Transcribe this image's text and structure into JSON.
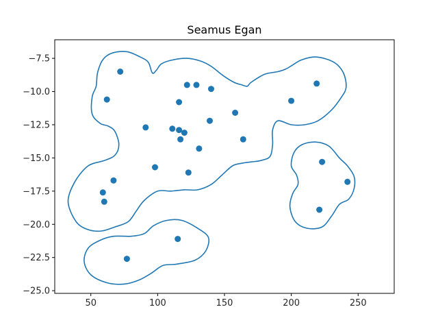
{
  "chart_data": {
    "type": "scatter",
    "title": "Seamus Egan",
    "xlabel": "",
    "ylabel": "",
    "xlim": [
      23,
      277
    ],
    "ylim": [
      -25.2,
      -6.1
    ],
    "xticks": [
      50,
      100,
      150,
      200,
      250
    ],
    "yticks": [
      -7.5,
      -10.0,
      -12.5,
      -15.0,
      -17.5,
      -20.0,
      -22.5,
      -25.0
    ],
    "xtick_labels": [
      "50",
      "100",
      "150",
      "200",
      "250"
    ],
    "ytick_labels": [
      "−7.5",
      "−10.0",
      "−12.5",
      "−15.0",
      "−17.5",
      "−20.0",
      "−22.5",
      "−25.0"
    ],
    "grid": false,
    "colors": {
      "points": "#1f77b4",
      "contour": "#1f77b4",
      "axes": "#000000"
    },
    "points": [
      {
        "x": 72,
        "y": -8.5
      },
      {
        "x": 62,
        "y": -10.6
      },
      {
        "x": 91,
        "y": -12.7
      },
      {
        "x": 98,
        "y": -15.7
      },
      {
        "x": 67,
        "y": -16.7
      },
      {
        "x": 59,
        "y": -17.6
      },
      {
        "x": 60,
        "y": -18.3
      },
      {
        "x": 111,
        "y": -12.8
      },
      {
        "x": 116,
        "y": -12.9
      },
      {
        "x": 120,
        "y": -13.1
      },
      {
        "x": 117,
        "y": -13.6
      },
      {
        "x": 116,
        "y": -10.8
      },
      {
        "x": 122,
        "y": -9.5
      },
      {
        "x": 129,
        "y": -9.5
      },
      {
        "x": 140,
        "y": -9.8
      },
      {
        "x": 139,
        "y": -12.2
      },
      {
        "x": 131,
        "y": -14.3
      },
      {
        "x": 123,
        "y": -16.1
      },
      {
        "x": 158,
        "y": -11.6
      },
      {
        "x": 164,
        "y": -13.6
      },
      {
        "x": 200,
        "y": -10.7
      },
      {
        "x": 219,
        "y": -9.4
      },
      {
        "x": 223,
        "y": -15.3
      },
      {
        "x": 242,
        "y": -16.8
      },
      {
        "x": 221,
        "y": -18.9
      },
      {
        "x": 115,
        "y": -21.1
      },
      {
        "x": 77,
        "y": -22.6
      }
    ],
    "contours": [
      [
        [
          33,
          -18.3
        ],
        [
          38,
          -16.8
        ],
        [
          48,
          -15.6
        ],
        [
          60,
          -15.2
        ],
        [
          68,
          -14.8
        ],
        [
          71,
          -14.0
        ],
        [
          68,
          -13.0
        ],
        [
          63,
          -12.6
        ],
        [
          57,
          -12.4
        ],
        [
          51,
          -11.7
        ],
        [
          51,
          -10.4
        ],
        [
          54,
          -9.6
        ],
        [
          55,
          -8.6
        ],
        [
          59,
          -7.6
        ],
        [
          66,
          -7.1
        ],
        [
          77,
          -7.0
        ],
        [
          87,
          -7.4
        ],
        [
          93,
          -7.8
        ],
        [
          96,
          -8.6
        ],
        [
          99,
          -8.4
        ],
        [
          103,
          -7.9
        ],
        [
          112,
          -7.6
        ],
        [
          122,
          -7.5
        ],
        [
          132,
          -7.7
        ],
        [
          140,
          -8.1
        ],
        [
          149,
          -8.8
        ],
        [
          157,
          -9.3
        ],
        [
          163,
          -9.5
        ],
        [
          167,
          -9.6
        ],
        [
          170,
          -9.3
        ],
        [
          180,
          -8.7
        ],
        [
          190,
          -8.5
        ],
        [
          196,
          -8.3
        ],
        [
          201,
          -8.0
        ],
        [
          208,
          -7.6
        ],
        [
          219,
          -7.4
        ],
        [
          232,
          -7.8
        ],
        [
          239,
          -8.6
        ],
        [
          241,
          -9.7
        ],
        [
          237,
          -10.5
        ],
        [
          230,
          -11.4
        ],
        [
          220,
          -12.2
        ],
        [
          210,
          -12.5
        ],
        [
          200,
          -12.5
        ],
        [
          190,
          -12.2
        ],
        [
          186,
          -12.9
        ],
        [
          186,
          -14.0
        ],
        [
          184,
          -14.9
        ],
        [
          177,
          -15.2
        ],
        [
          170,
          -15.3
        ],
        [
          163,
          -15.4
        ],
        [
          156,
          -15.6
        ],
        [
          148,
          -16.3
        ],
        [
          140,
          -17.0
        ],
        [
          130,
          -17.4
        ],
        [
          120,
          -17.4
        ],
        [
          110,
          -17.5
        ],
        [
          100,
          -17.5
        ],
        [
          90,
          -18.2
        ],
        [
          84,
          -19.0
        ],
        [
          78,
          -19.8
        ],
        [
          68,
          -20.2
        ],
        [
          58,
          -20.5
        ],
        [
          48,
          -20.4
        ],
        [
          39,
          -19.8
        ],
        [
          33,
          -18.3
        ]
      ],
      [
        [
          200,
          -15.6
        ],
        [
          202,
          -14.6
        ],
        [
          208,
          -14.0
        ],
        [
          218,
          -13.8
        ],
        [
          228,
          -14.1
        ],
        [
          236,
          -15.0
        ],
        [
          242,
          -15.6
        ],
        [
          247,
          -16.4
        ],
        [
          247,
          -17.3
        ],
        [
          243,
          -18.1
        ],
        [
          236,
          -18.5
        ],
        [
          230,
          -19.4
        ],
        [
          223,
          -20.2
        ],
        [
          212,
          -20.3
        ],
        [
          203,
          -19.8
        ],
        [
          199,
          -18.7
        ],
        [
          201,
          -17.7
        ],
        [
          205,
          -17.0
        ],
        [
          204,
          -16.3
        ],
        [
          200,
          -15.6
        ]
      ],
      [
        [
          45,
          -22.8
        ],
        [
          48,
          -21.8
        ],
        [
          57,
          -21.2
        ],
        [
          67,
          -20.9
        ],
        [
          80,
          -20.9
        ],
        [
          90,
          -20.7
        ],
        [
          97,
          -20.1
        ],
        [
          107,
          -19.7
        ],
        [
          118,
          -19.7
        ],
        [
          130,
          -20.3
        ],
        [
          138,
          -21.0
        ],
        [
          136,
          -22.0
        ],
        [
          128,
          -22.7
        ],
        [
          114,
          -23.0
        ],
        [
          104,
          -23.1
        ],
        [
          95,
          -23.7
        ],
        [
          86,
          -24.2
        ],
        [
          75,
          -24.5
        ],
        [
          62,
          -24.4
        ],
        [
          50,
          -23.8
        ],
        [
          45,
          -22.8
        ]
      ]
    ]
  }
}
